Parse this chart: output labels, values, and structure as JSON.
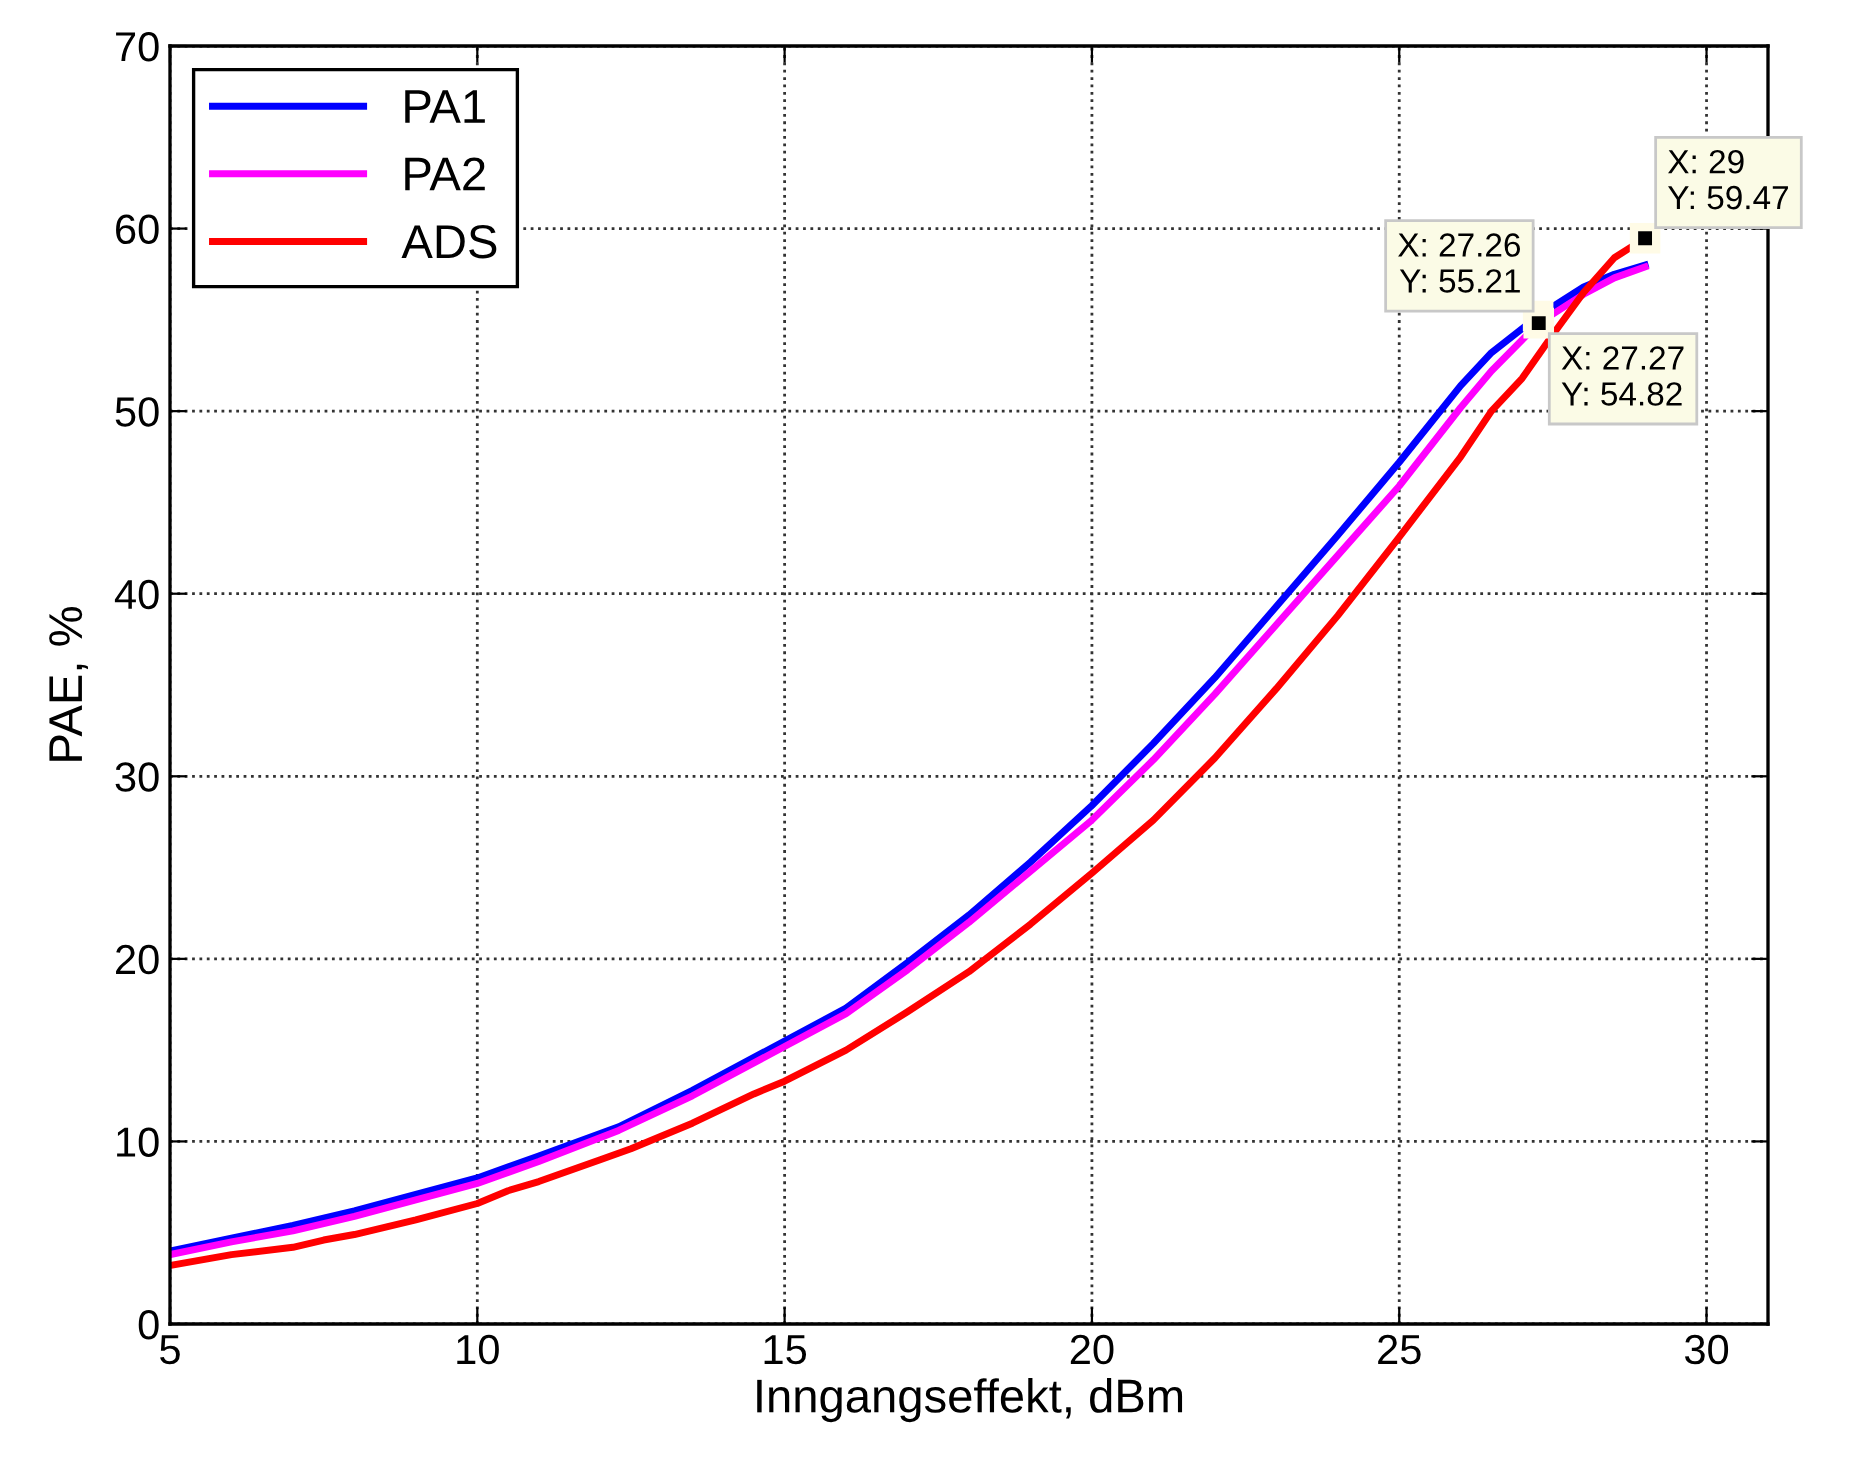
{
  "chart_data": {
    "type": "line",
    "xlabel": "Inngangseffekt, dBm",
    "ylabel": "PAE, %",
    "xlim": [
      5,
      31
    ],
    "ylim": [
      0,
      70
    ],
    "xticks": [
      5,
      10,
      15,
      20,
      25,
      30
    ],
    "yticks": [
      0,
      10,
      20,
      30,
      40,
      50,
      60,
      70
    ],
    "grid": true,
    "legend": "top left",
    "line_style": "solid",
    "marker": "none",
    "series": [
      {
        "name": "PA1",
        "color": "#0000ff",
        "x": [
          5,
          6,
          7,
          8,
          9,
          10,
          11,
          12.3,
          13.5,
          15,
          16,
          17,
          18,
          19,
          20,
          21,
          22,
          23,
          24,
          25,
          26,
          26.5,
          27.26,
          28,
          28.5,
          29
        ],
        "values": [
          4.0,
          4.7,
          5.4,
          6.2,
          7.1,
          8.0,
          9.2,
          10.8,
          12.8,
          15.5,
          17.3,
          19.8,
          22.4,
          25.3,
          28.4,
          31.8,
          35.4,
          39.3,
          43.2,
          47.2,
          51.4,
          53.2,
          55.21,
          56.8,
          57.5,
          58.0
        ]
      },
      {
        "name": "PA2",
        "color": "#ff00ff",
        "x": [
          5,
          6,
          7,
          8,
          9,
          10,
          11,
          12.3,
          13.5,
          15,
          16,
          17,
          18,
          19,
          20,
          21,
          22,
          23,
          24,
          25,
          26,
          26.5,
          27.27,
          28,
          28.5,
          29
        ],
        "values": [
          3.8,
          4.5,
          5.1,
          5.9,
          6.8,
          7.7,
          8.9,
          10.6,
          12.5,
          15.2,
          17.0,
          19.4,
          22.0,
          24.8,
          27.6,
          30.9,
          34.5,
          38.3,
          42.1,
          45.9,
          50.2,
          52.2,
          54.82,
          56.4,
          57.3,
          57.9
        ]
      },
      {
        "name": "ADS",
        "color": "#ff0000",
        "x": [
          5,
          6,
          7,
          7.5,
          8,
          9,
          10,
          10.5,
          11,
          12,
          12.5,
          13.5,
          14.5,
          15,
          16,
          17,
          18,
          19,
          20,
          21,
          22,
          23,
          24,
          25,
          26,
          26.5,
          27,
          27.5,
          28,
          28.5,
          29
        ],
        "values": [
          3.2,
          3.8,
          4.2,
          4.6,
          4.9,
          5.7,
          6.6,
          7.3,
          7.8,
          9.0,
          9.6,
          11.0,
          12.6,
          13.3,
          15.0,
          17.1,
          19.3,
          21.9,
          24.7,
          27.6,
          31.0,
          34.8,
          38.8,
          43.1,
          47.5,
          50.0,
          51.8,
          54.2,
          56.5,
          58.4,
          59.47
        ]
      }
    ],
    "annotations": [
      {
        "text": "X: 27.26\nY: 55.21",
        "x": 27.26,
        "y": 55.21
      },
      {
        "text": "X: 27.27\nY: 54.82",
        "x": 27.27,
        "y": 54.82
      },
      {
        "text": "X: 29\nY: 59.47",
        "x": 29,
        "y": 59.47
      }
    ]
  }
}
